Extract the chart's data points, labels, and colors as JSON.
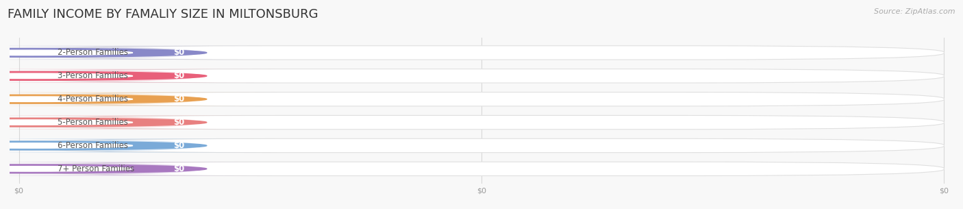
{
  "title": "FAMILY INCOME BY FAMALIY SIZE IN MILTONSBURG",
  "source": "Source: ZipAtlas.com",
  "categories": [
    "2-Person Families",
    "3-Person Families",
    "4-Person Families",
    "5-Person Families",
    "6-Person Families",
    "7+ Person Families"
  ],
  "values": [
    0,
    0,
    0,
    0,
    0,
    0
  ],
  "bar_colors": [
    "#a8a8d0",
    "#f090a8",
    "#f0b878",
    "#f09898",
    "#90b8e0",
    "#b890cc"
  ],
  "dot_colors": [
    "#8888c8",
    "#e8607a",
    "#e8a050",
    "#e88080",
    "#7aaad8",
    "#a878c0"
  ],
  "value_labels": [
    "$0",
    "$0",
    "$0",
    "$0",
    "$0",
    "$0"
  ],
  "x_tick_labels": [
    "$0",
    "$0",
    "$0"
  ],
  "x_tick_positions": [
    0.0,
    0.5,
    1.0
  ],
  "background_color": "#f8f8f8",
  "bar_bg_color": "#ffffff",
  "bar_bg_edge_color": "#e0e0e0",
  "title_fontsize": 13,
  "label_fontsize": 8.5,
  "value_fontsize": 8.5,
  "source_fontsize": 8,
  "grid_color": "#d8d8d8",
  "tick_color": "#999999",
  "label_text_color": "#555555",
  "title_color": "#333333"
}
